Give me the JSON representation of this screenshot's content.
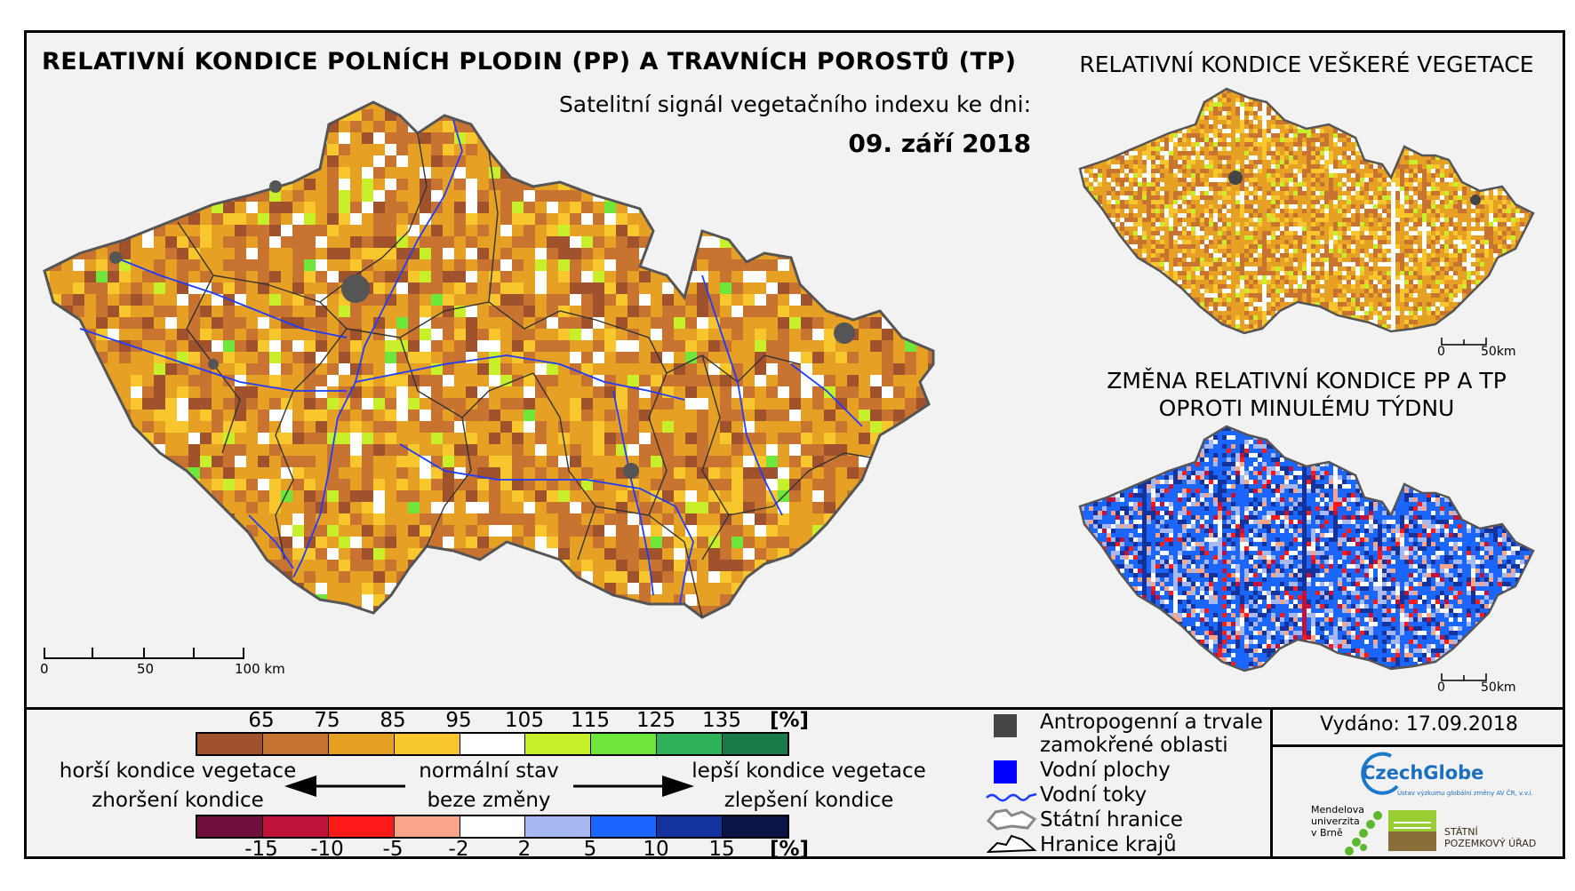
{
  "titles": {
    "main": "RELATIVNÍ KONDICE POLNÍCH PLODIN (PP) A TRAVNÍCH POROSTŮ (TP)",
    "subtitle": "Satelitní signál vegetačního indexu ke dni:",
    "date": "09. září 2018",
    "right_top": "RELATIVNÍ KONDICE VEŠKERÉ VEGETACE",
    "right_bottom_line1": "ZMĚNA RELATIVNÍ KONDICE PP A TP",
    "right_bottom_line2": "OPROTI MINULÉMU TÝDNU"
  },
  "scalebar_main": {
    "labels": [
      "0",
      "50",
      "100 km"
    ]
  },
  "scalebar_small_top": {
    "labels": [
      "0",
      "50km"
    ]
  },
  "scalebar_small_bottom": {
    "labels": [
      "0",
      "50km"
    ]
  },
  "condition_legend": {
    "ticks": [
      "65",
      "75",
      "85",
      "95",
      "105",
      "115",
      "125",
      "135"
    ],
    "unit": "[%]",
    "colors": [
      "#a0522d",
      "#c8732f",
      "#e6a024",
      "#f7c72d",
      "#ffffff",
      "#c8f02a",
      "#6ee63a",
      "#2fb35a",
      "#1a7a4a"
    ]
  },
  "change_legend": {
    "ticks": [
      "-15",
      "-10",
      "-5",
      "-2",
      "2",
      "5",
      "10",
      "15"
    ],
    "unit": "[%]",
    "colors": [
      "#6e0f3c",
      "#c0123a",
      "#ff1a1a",
      "#f8a58a",
      "#ffffff",
      "#a8b8f0",
      "#1a66ff",
      "#14329c",
      "#0a1446"
    ]
  },
  "arrow_labels": {
    "left_top": "horší kondice vegetace",
    "left_bottom": "zhoršení kondice",
    "center_top": "normální stav",
    "center_bottom": "beze změny",
    "right_top": "lepší kondice vegetace",
    "right_bottom": "zlepšení kondice"
  },
  "symbol_legend": {
    "items": [
      {
        "label": "Antropogenní a trvale zamokřené oblasti",
        "icon": "dark-gray-square"
      },
      {
        "label": "Vodní plochy",
        "icon": "blue-square"
      },
      {
        "label": "Vodní toky",
        "icon": "blue-river-line"
      },
      {
        "label": "Státní hranice",
        "icon": "gray-border-outline"
      },
      {
        "label": "Hranice krajů",
        "icon": "black-region-outline"
      }
    ],
    "item1_line1": "Antropogenní a trvale",
    "item1_line2": "zamokřené oblasti"
  },
  "issued": "Vydáno: 17.09.2018",
  "logos": {
    "czechglobe": "CzechGlobe",
    "czechglobe_sub": "Ústav výzkumu globální změny AV ČR, v.v.i.",
    "mendel_line1": "Mendelova",
    "mendel_line2": "univerzita",
    "mendel_line3": "v Brně",
    "spu_line1": "STÁTNÍ",
    "spu_line2": "POZEMKOVÝ ÚŘAD"
  }
}
